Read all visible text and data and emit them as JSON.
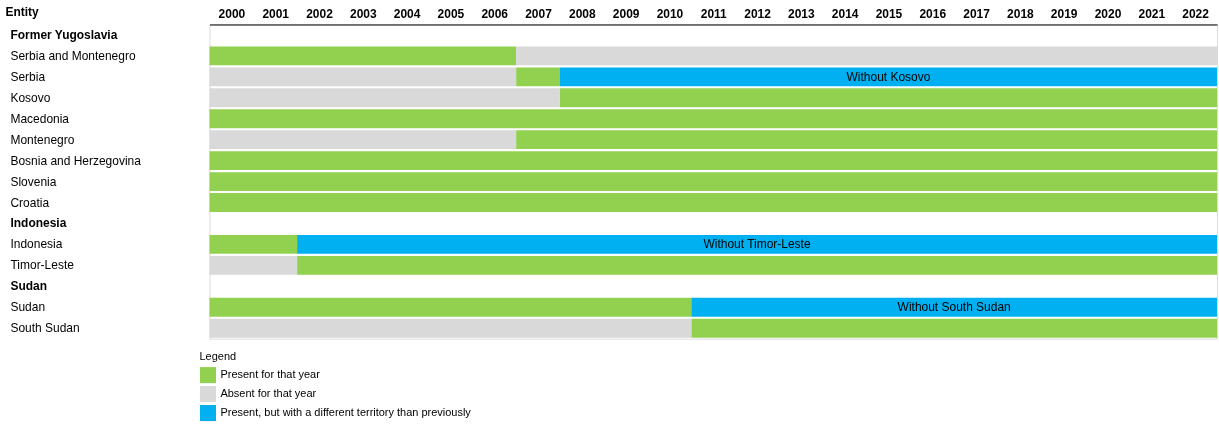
{
  "chart_data": {
    "type": "bar",
    "orientation": "horizontal",
    "ylabel": "Entity",
    "legend_title": "Legend",
    "legend": "bottom",
    "categories": [
      "Former Yugoslavia",
      "Serbia and Montenegro",
      "Serbia",
      "Kosovo",
      "Macedonia",
      "Montenegro",
      "Bosnia and Herzegovina",
      "Slovenia",
      "Croatia",
      "Indonesia",
      "Indonesia",
      "Timor-Leste",
      "Sudan",
      "Sudan",
      "South Sudan"
    ],
    "xlim": [
      2000,
      2023
    ],
    "xticks": [
      {
        "value": 2000.5,
        "label": "2000"
      },
      {
        "value": 2001.5,
        "label": "2001"
      },
      {
        "value": 2002.5,
        "label": "2002"
      },
      {
        "value": 2003.5,
        "label": "2003"
      },
      {
        "value": 2004.5,
        "label": "2004"
      },
      {
        "value": 2005.5,
        "label": "2005"
      },
      {
        "value": 2006.5,
        "label": "2006"
      },
      {
        "value": 2007.5,
        "label": "2007"
      },
      {
        "value": 2008.5,
        "label": "2008"
      },
      {
        "value": 2009.5,
        "label": "2009"
      },
      {
        "value": 2010.5,
        "label": "2010"
      },
      {
        "value": 2011.5,
        "label": "2011"
      },
      {
        "value": 2012.5,
        "label": "2012"
      },
      {
        "value": 2013.5,
        "label": "2013"
      },
      {
        "value": 2014.5,
        "label": "2014"
      },
      {
        "value": 2015.5,
        "label": "2015"
      },
      {
        "value": 2016.5,
        "label": "2016"
      },
      {
        "value": 2017.5,
        "label": "2017"
      },
      {
        "value": 2018.5,
        "label": "2018"
      },
      {
        "value": 2019.5,
        "label": "2019"
      },
      {
        "value": 2020.5,
        "label": "2020"
      },
      {
        "value": 2021.5,
        "label": "2021"
      },
      {
        "value": 2022.5,
        "label": "2022"
      }
    ],
    "series": [
      {
        "name": "Present for that year",
        "color": "#92d050",
        "base": [
          null,
          2000,
          2007,
          2008,
          2000,
          2007,
          2000,
          2000,
          2000,
          null,
          2000,
          2002,
          null,
          2000,
          2011
        ],
        "values": [
          null,
          7,
          1,
          15,
          23,
          16,
          23,
          23,
          23,
          null,
          2,
          21,
          null,
          11,
          12
        ]
      },
      {
        "name": "Absent for that year",
        "color": "#d9d9d9",
        "base": [
          null,
          2007,
          2000,
          2000,
          null,
          2000,
          null,
          null,
          null,
          null,
          null,
          2000,
          null,
          null,
          2000
        ],
        "values": [
          null,
          16,
          7,
          8,
          null,
          7,
          null,
          null,
          null,
          null,
          null,
          2,
          null,
          null,
          11
        ]
      },
      {
        "name": "Present, but with a different territory than previously",
        "color": "#00b0f0",
        "base": [
          null,
          null,
          2008,
          null,
          null,
          null,
          null,
          null,
          null,
          null,
          2002,
          null,
          null,
          2011,
          null
        ],
        "values": [
          null,
          null,
          15,
          null,
          null,
          null,
          null,
          null,
          null,
          null,
          21,
          null,
          null,
          12,
          null
        ]
      }
    ],
    "annotations": [
      {
        "text": "Without Kosovo",
        "x": 2015.5,
        "y": "Serbia"
      },
      {
        "text": "Without Timor-Leste",
        "x": 2012.5,
        "y": "Indonesia"
      },
      {
        "text": "Without South Sudan",
        "x": 2017,
        "y": "Sudan"
      }
    ]
  }
}
